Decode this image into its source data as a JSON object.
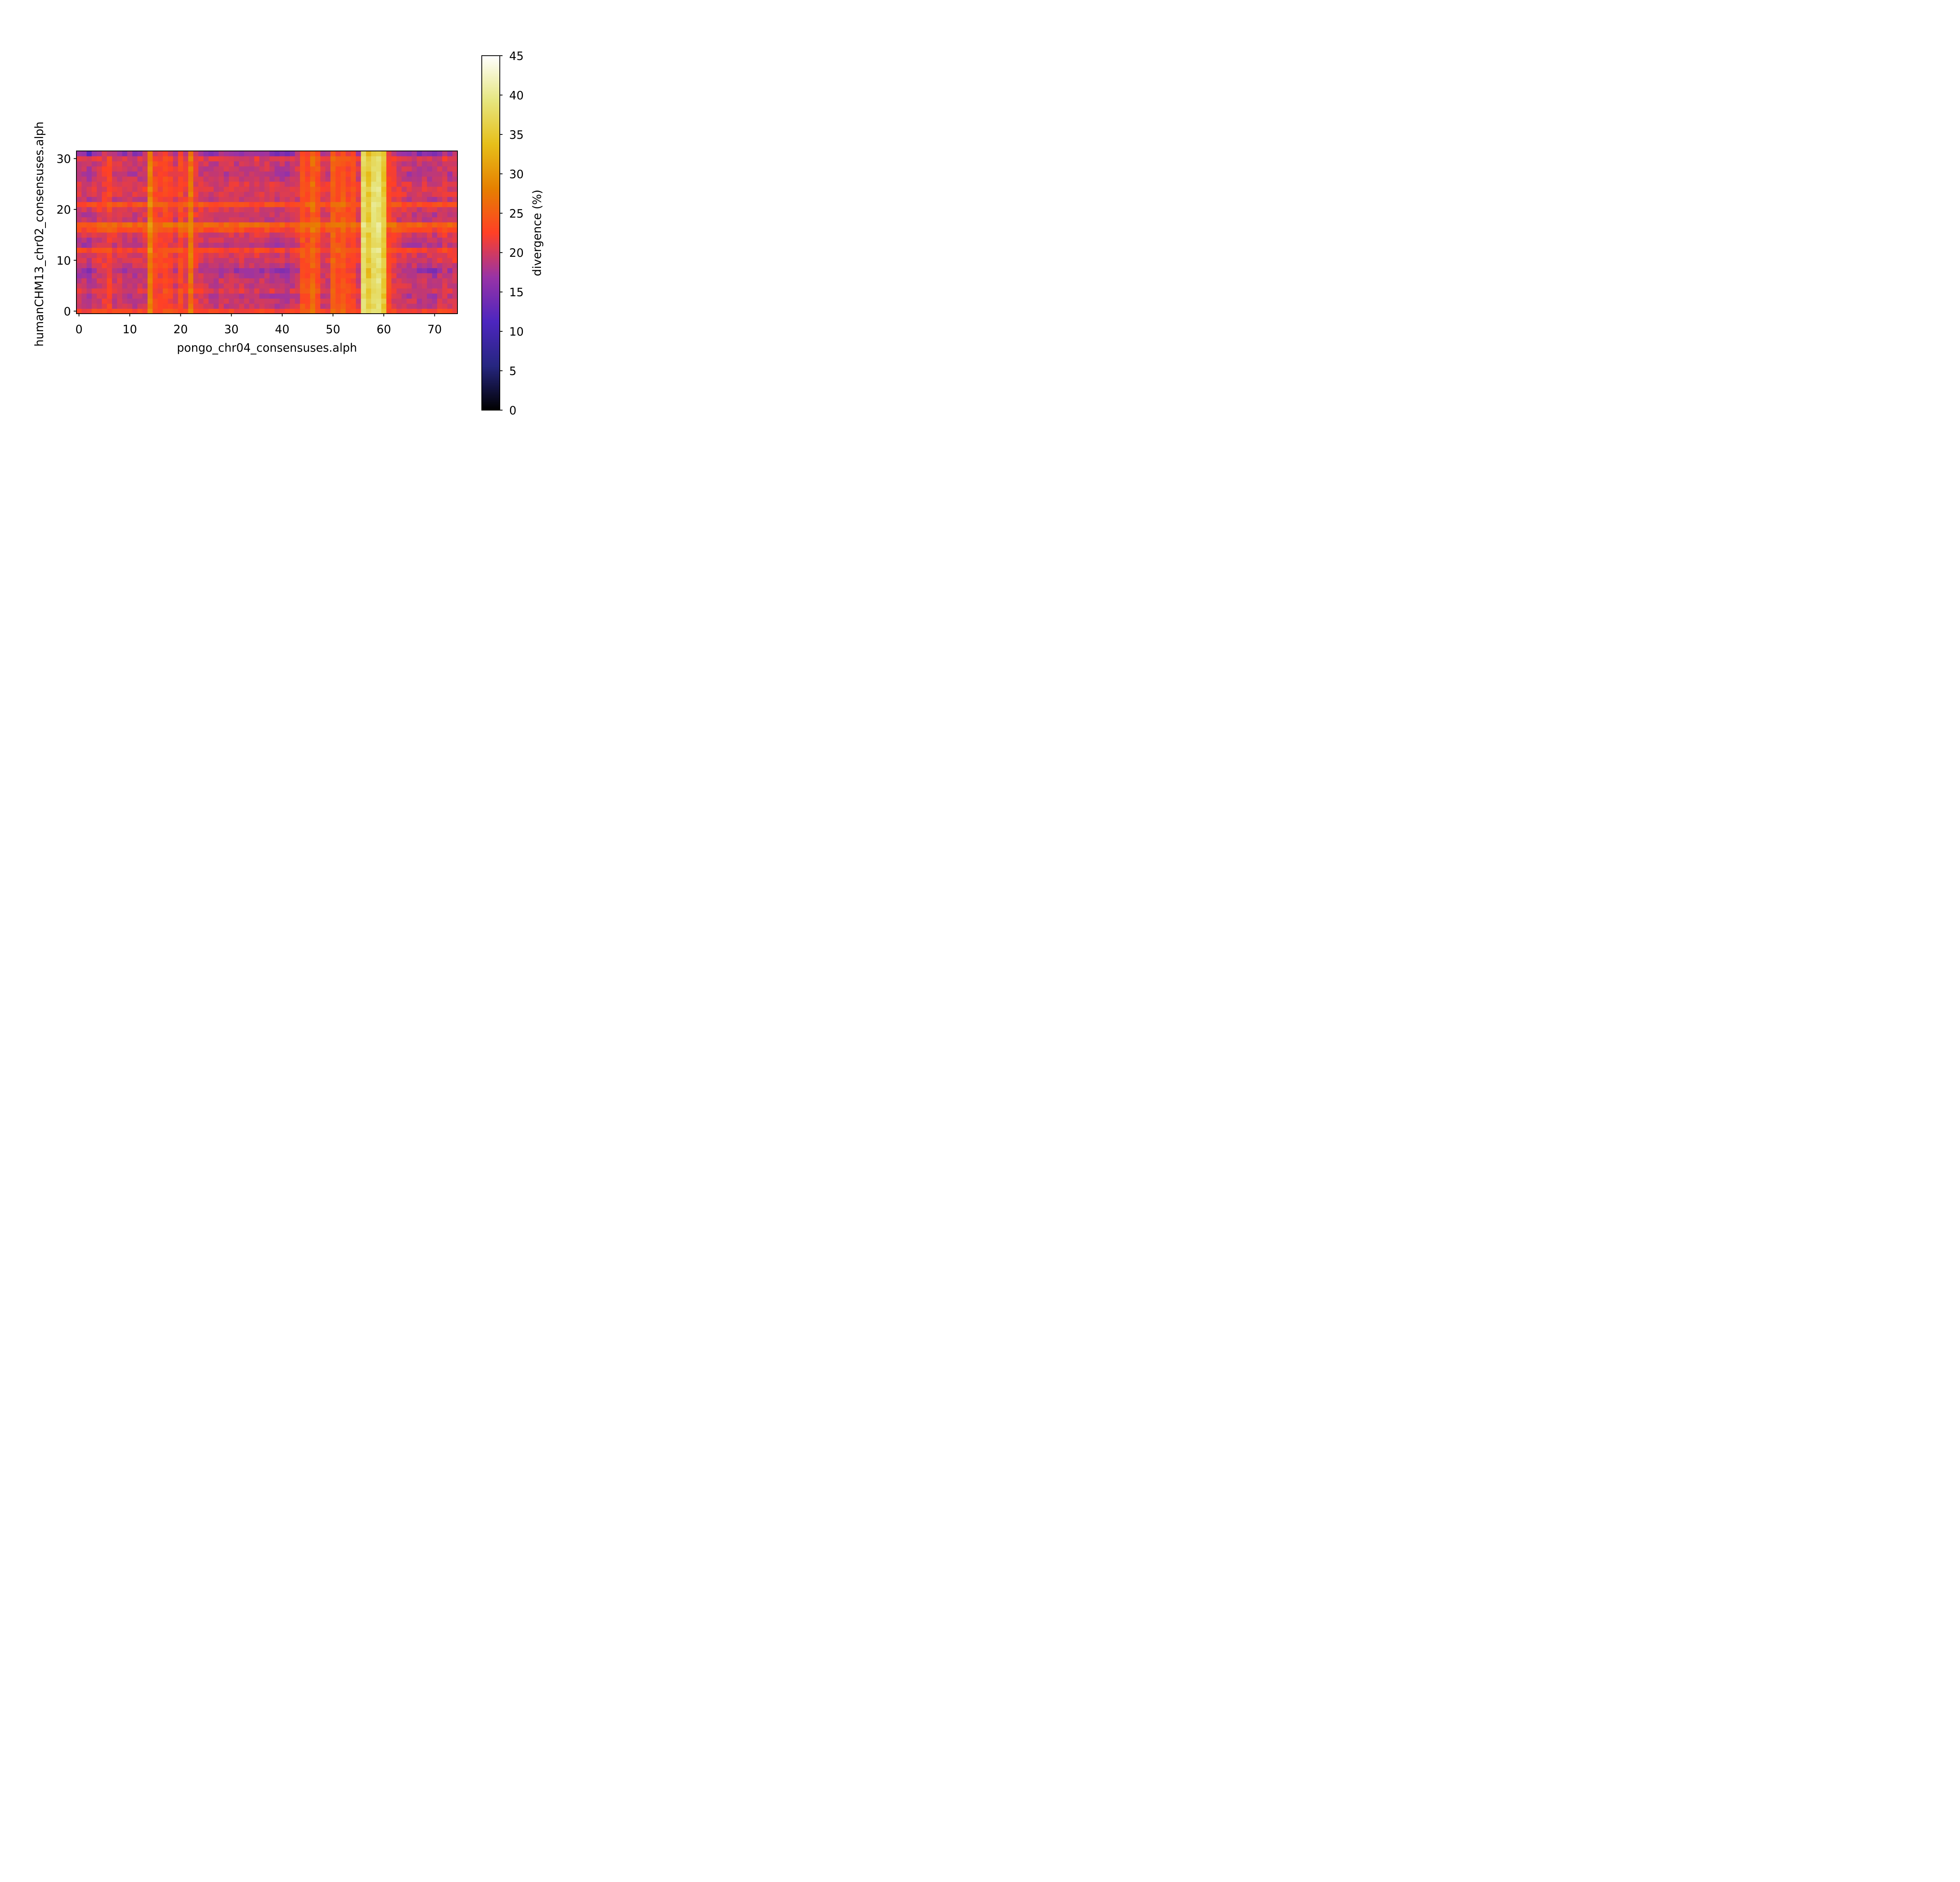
{
  "chart_data": {
    "type": "heatmap",
    "title": "",
    "xlabel": "pongo_chr04_consensuses.alph",
    "ylabel": "humanCHM13_chr02_consensuses.alph",
    "n_cols": 75,
    "n_rows": 32,
    "xlim": [
      -0.5,
      74.5
    ],
    "ylim": [
      -0.5,
      31.5
    ],
    "x_ticks": [
      0,
      10,
      20,
      30,
      40,
      50,
      60,
      70
    ],
    "y_ticks": [
      0,
      10,
      20,
      30
    ],
    "colorbar": {
      "label": "divergence (%)",
      "colormap": "CMRmap",
      "vmin": 0,
      "vmax": 45,
      "ticks": [
        0,
        5,
        10,
        15,
        20,
        25,
        30,
        35,
        40,
        45
      ]
    },
    "column_profile": [
      18,
      17,
      15,
      19,
      20,
      21,
      22,
      19,
      20,
      18,
      19,
      18,
      19,
      20,
      28,
      23,
      22,
      23,
      22,
      20,
      23,
      21,
      27,
      21,
      20,
      19,
      18,
      18,
      19,
      18,
      19,
      18,
      19,
      18,
      18,
      19,
      18,
      19,
      18,
      17,
      17,
      16,
      18,
      20,
      24,
      23,
      26,
      24,
      20,
      20,
      25,
      24,
      25,
      23,
      23,
      20,
      38,
      35,
      38,
      39,
      35,
      23,
      21,
      20,
      19,
      18,
      18,
      17,
      18,
      17,
      16,
      19,
      20,
      18,
      20
    ],
    "row_profile": [
      23,
      20,
      20,
      19,
      21,
      20,
      20,
      19,
      17,
      20,
      21,
      21,
      23,
      19,
      20,
      21,
      24,
      26,
      20,
      20,
      21,
      24,
      20,
      21,
      21,
      21,
      20,
      19,
      20,
      20,
      21,
      15
    ],
    "grid": false
  }
}
